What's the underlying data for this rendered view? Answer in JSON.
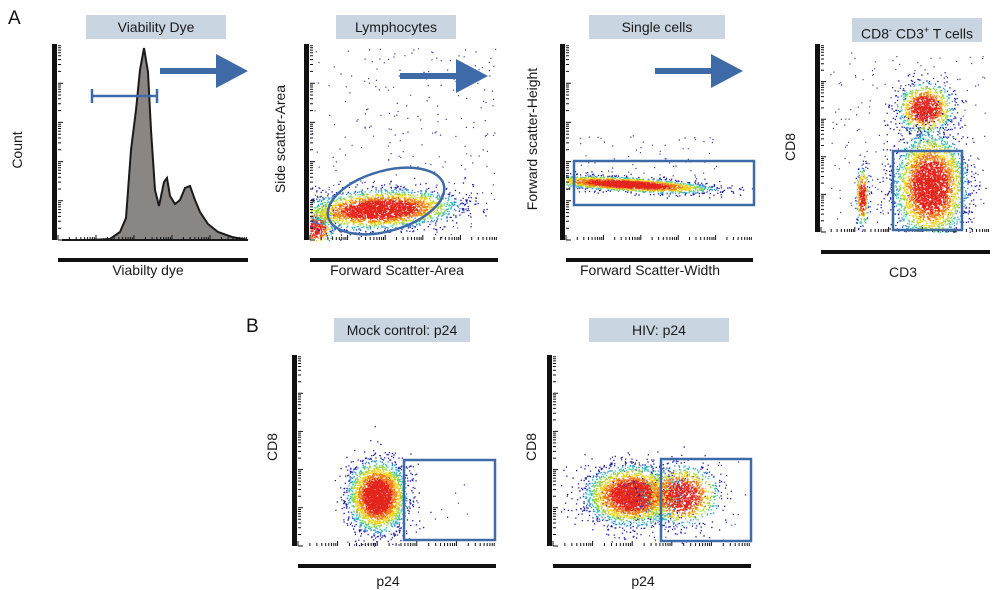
{
  "panel_labels": {
    "a": "A",
    "b": "B"
  },
  "colors": {
    "title_box": "#c9d6e2",
    "gate_and_arrow": "#3f6aa8",
    "axis": "#111111",
    "histogram_fill": "#8a8683",
    "density_scale": [
      "#1a1aa8",
      "#2b8cd6",
      "#2ec4b0",
      "#9ad23a",
      "#f4d21e",
      "#f07a1a",
      "#e3241b"
    ]
  },
  "icons": {
    "gating_arrow": "right-arrow-icon"
  },
  "plots": {
    "viability": {
      "title": "Viability Dye",
      "x_label": "Viabilty dye",
      "y_label": "Count",
      "type": "histogram"
    },
    "lymphocytes": {
      "title": "Lymphocytes",
      "x_label": "Forward Scatter-Area",
      "y_label": "Side scatter-Area",
      "type": "density-scatter",
      "gate": "ellipse"
    },
    "single_cells": {
      "title": "Single cells",
      "x_label": "Forward Scatter-Width",
      "y_label": "Forward scatter-Height",
      "type": "density-scatter",
      "gate": "rectangle"
    },
    "cd8_cd3": {
      "title_main": "CD8",
      "title_sup1": "-",
      "title_mid": " CD3",
      "title_sup2": "+",
      "title_end": " T cells",
      "x_label": "CD3",
      "y_label": "CD8",
      "type": "density-scatter",
      "gate": "rectangle"
    },
    "mock": {
      "title": "Mock control: p24",
      "x_label": "p24",
      "y_label": "CD8",
      "type": "density-scatter",
      "gate": "rectangle"
    },
    "hiv": {
      "title": "HIV: p24",
      "x_label": "p24",
      "y_label": "CD8",
      "type": "density-scatter",
      "gate": "rectangle"
    }
  }
}
